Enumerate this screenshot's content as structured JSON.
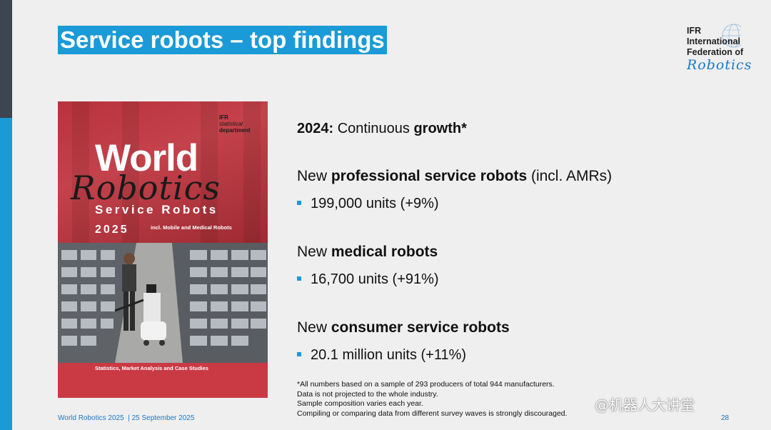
{
  "slide": {
    "title": "Service robots – top findings",
    "logo": {
      "line1": "IFR",
      "line2": "International",
      "line3": "Federation of",
      "script": "Robotics"
    },
    "cover": {
      "ifr_line1": "IFR",
      "ifr_line2": "statistical",
      "ifr_line3": "department",
      "title_world": "World",
      "title_robotics": "Robotics",
      "title_service": "Service Robots",
      "year": "2025",
      "subtitle": "incl. Mobile and Medical Robots",
      "bottom_text": "Statistics, Market Analysis and Case Studies"
    },
    "headline": {
      "year": "2024:",
      "mid": " Continuous ",
      "bold": "growth*"
    },
    "sections": [
      {
        "pre": "New ",
        "bold": "professional service robots",
        "post": " (incl. AMRs)",
        "value": "199,000 units (+9%)"
      },
      {
        "pre": "New ",
        "bold": "medical robots",
        "post": "",
        "value": "16,700 units (+91%)"
      },
      {
        "pre": "New ",
        "bold": "consumer service robots",
        "post": "",
        "value": "20.1 million units (+11%)"
      }
    ],
    "footnote": [
      "*All numbers based on a sample of 293 producers of total 944 manufacturers.",
      "Data is not projected to the whole industry.",
      "Sample composition varies each year.",
      "Compiling or comparing data from different survey waves is strongly discouraged."
    ],
    "footer_left": "World Robotics 2025  | 25 September 2025",
    "page_number": "28",
    "watermark": "@机器人大讲堂",
    "colors": {
      "accent": "#1a9ad6",
      "cover_red": "#c93a44",
      "sidebar_dark": "#3c4550"
    }
  }
}
